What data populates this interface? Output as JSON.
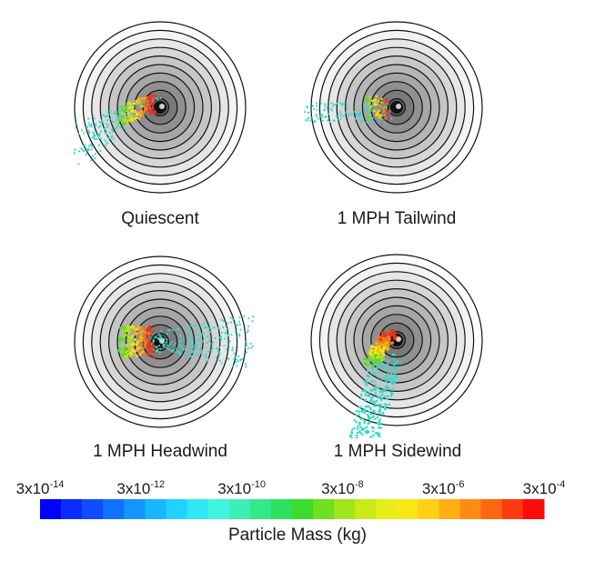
{
  "panels": [
    {
      "label": "Quiescent",
      "plume": "quiescent"
    },
    {
      "label": "1 MPH Tailwind",
      "plume": "tailwind"
    },
    {
      "label": "1 MPH Headwind",
      "plume": "headwind"
    },
    {
      "label": "1 MPH Sidewind",
      "plume": "sidewind"
    }
  ],
  "colorbar": {
    "title": "Particle Mass (kg)",
    "ticks": [
      {
        "base": "3x10",
        "exp": "-14"
      },
      {
        "base": "3x10",
        "exp": "-12"
      },
      {
        "base": "3x10",
        "exp": "-10"
      },
      {
        "base": "3x10",
        "exp": "-8"
      },
      {
        "base": "3x10",
        "exp": "-6"
      },
      {
        "base": "3x10",
        "exp": "-4"
      }
    ],
    "colors": [
      "#0000ff",
      "#0a2cff",
      "#0f4dff",
      "#1270ff",
      "#1594ff",
      "#18b6ff",
      "#1fd2ff",
      "#2ee8f5",
      "#3ff5e0",
      "#3cf0b5",
      "#35e88a",
      "#2ee060",
      "#3bdc2c",
      "#6fe01f",
      "#a1e61a",
      "#c9ea18",
      "#e5ee17",
      "#f7e816",
      "#ffd015",
      "#ffae14",
      "#ff8a13",
      "#ff6612",
      "#ff3a10",
      "#ff0a0a"
    ]
  }
}
